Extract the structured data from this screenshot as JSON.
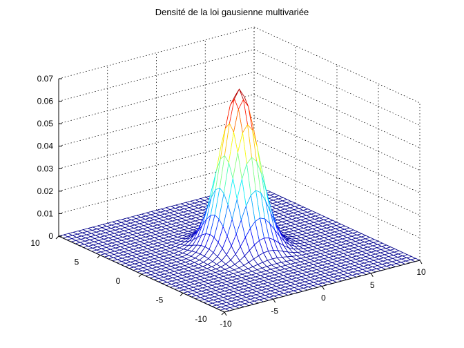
{
  "chart_data": {
    "type": "surface",
    "title": "Densité de la loi gausienne multivariée",
    "function": "bivariate normal density, mean (0,0), sigma 1.5 in x and y",
    "mean": [
      0,
      0
    ],
    "sigma": [
      1.5,
      1.5
    ],
    "x": {
      "range": [
        -10,
        10
      ],
      "ticks": [
        -10,
        -5,
        0,
        5,
        10
      ],
      "tick_labels": [
        "-10",
        "-5",
        "0",
        "5",
        "10"
      ],
      "mesh_step": 0.5
    },
    "y": {
      "range": [
        -10,
        10
      ],
      "ticks": [
        -10,
        -5,
        0,
        5,
        10
      ],
      "tick_labels": [
        "-10",
        "-5",
        "0",
        "5",
        "10"
      ],
      "mesh_step": 0.5
    },
    "z": {
      "range": [
        0,
        0.07
      ],
      "ticks": [
        0,
        0.01,
        0.02,
        0.03,
        0.04,
        0.05,
        0.06,
        0.07
      ],
      "tick_labels": [
        "0",
        "0.01",
        "0.02",
        "0.03",
        "0.04",
        "0.05",
        "0.06",
        "0.07"
      ]
    },
    "peak_value": 0.0707,
    "grid": true,
    "grid_style": "dotted",
    "colormap": [
      "#00008f",
      "#0000ff",
      "#0080ff",
      "#00ffff",
      "#80ff80",
      "#ffff00",
      "#ff8000",
      "#ff0000",
      "#800000"
    ]
  }
}
